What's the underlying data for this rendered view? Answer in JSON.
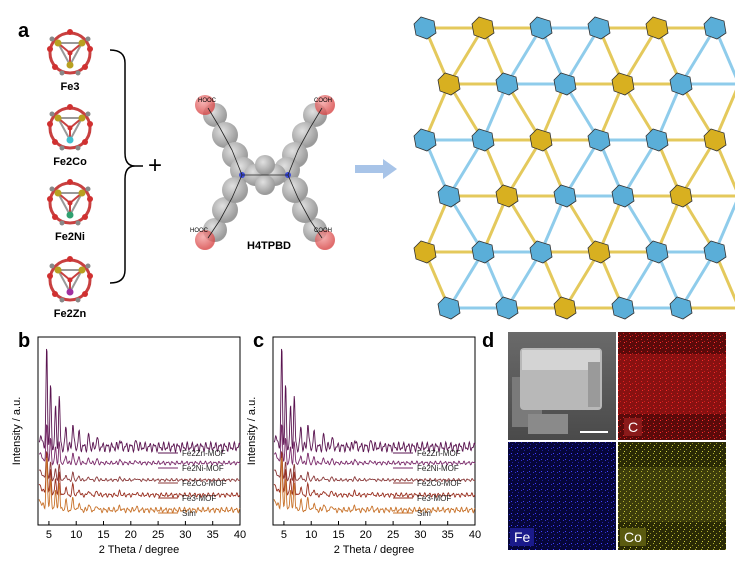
{
  "panels": {
    "a": "a",
    "b": "b",
    "c": "c",
    "d": "d"
  },
  "clusters": [
    "Fe3",
    "Fe2Co",
    "Fe2Ni",
    "Fe2Zn"
  ],
  "ligand": {
    "name": "H4TPBD",
    "cooh_top_left": "HOOC",
    "cooh_top_right": "COOH",
    "cooh_bottom_left": "HOOC",
    "cooh_bottom_right": "COOH"
  },
  "plus": "+",
  "xrd": {
    "ylabel": "Intensity / a.u.",
    "xlabel": "2 Theta / degree",
    "ticks": [
      "5",
      "10",
      "15",
      "20",
      "25",
      "30",
      "35",
      "40"
    ],
    "legend": [
      "Fe2Zn-MOF",
      "Fe2Ni-MOF",
      "Fe2Co-MOF",
      "Fe3-MOF",
      "Sim"
    ]
  },
  "chart_data": [
    {
      "type": "line",
      "panel": "b",
      "xlabel": "2 Theta / degree",
      "ylabel": "Intensity / a.u.",
      "xlim": [
        3,
        40
      ],
      "series": [
        {
          "name": "Fe2Zn-MOF",
          "color": "#5a1450"
        },
        {
          "name": "Fe2Ni-MOF",
          "color": "#7a2a6a"
        },
        {
          "name": "Fe2Co-MOF",
          "color": "#8b3a3a"
        },
        {
          "name": "Fe3-MOF",
          "color": "#9a3020"
        },
        {
          "name": "Sim",
          "color": "#c8722a"
        }
      ]
    },
    {
      "type": "line",
      "panel": "c",
      "xlabel": "2 Theta / degree",
      "ylabel": "Intensity / a.u.",
      "xlim": [
        3,
        40
      ],
      "series": [
        {
          "name": "Fe2Zn-MOF",
          "color": "#5a1450"
        },
        {
          "name": "Fe2Ni-MOF",
          "color": "#7a2a6a"
        },
        {
          "name": "Fe2Co-MOF",
          "color": "#8b3a3a"
        },
        {
          "name": "Fe3-MOF",
          "color": "#9a3020"
        },
        {
          "name": "Sim",
          "color": "#c8722a"
        }
      ]
    }
  ],
  "eds": {
    "c": "C",
    "fe": "Fe",
    "co": "Co"
  },
  "colors": {
    "cluster_blue": "#5aaed8",
    "cluster_gold": "#d8b020",
    "arrow": "#a8c4e8"
  }
}
